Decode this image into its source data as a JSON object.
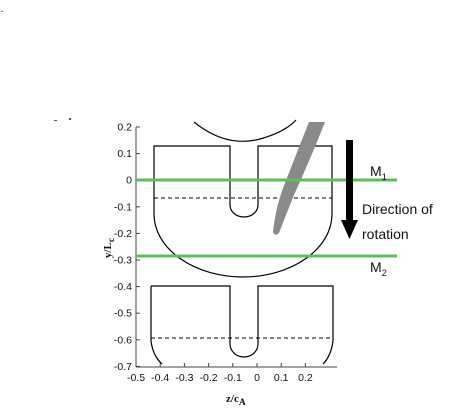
{
  "figure": {
    "annotations": {
      "m1": {
        "main": "M",
        "sub": "1"
      },
      "m2": {
        "main": "M",
        "sub": "2"
      },
      "direction_line1": "Direction of",
      "direction_line2": "rotation"
    },
    "axes": {
      "ylabel": {
        "main": "y/L",
        "sub": "c"
      },
      "xlabel": {
        "main": "z/c",
        "sub": "A"
      },
      "y_ticks": [
        "0.2",
        "0.1",
        "0",
        "-0.1",
        "-0.2",
        "-0.3",
        "-0.4",
        "-0.5",
        "-0.6",
        "-0.7"
      ],
      "x_ticks": [
        "-0.5",
        "-0.4",
        "-0.3",
        "-0.2",
        "-0.1",
        "0",
        "0.1",
        "0.2"
      ]
    },
    "colors": {
      "line_green": "#5bbf5b",
      "shadow_gray": "#8a8a8a",
      "arrow": "#000000",
      "outline": "#000000"
    }
  }
}
